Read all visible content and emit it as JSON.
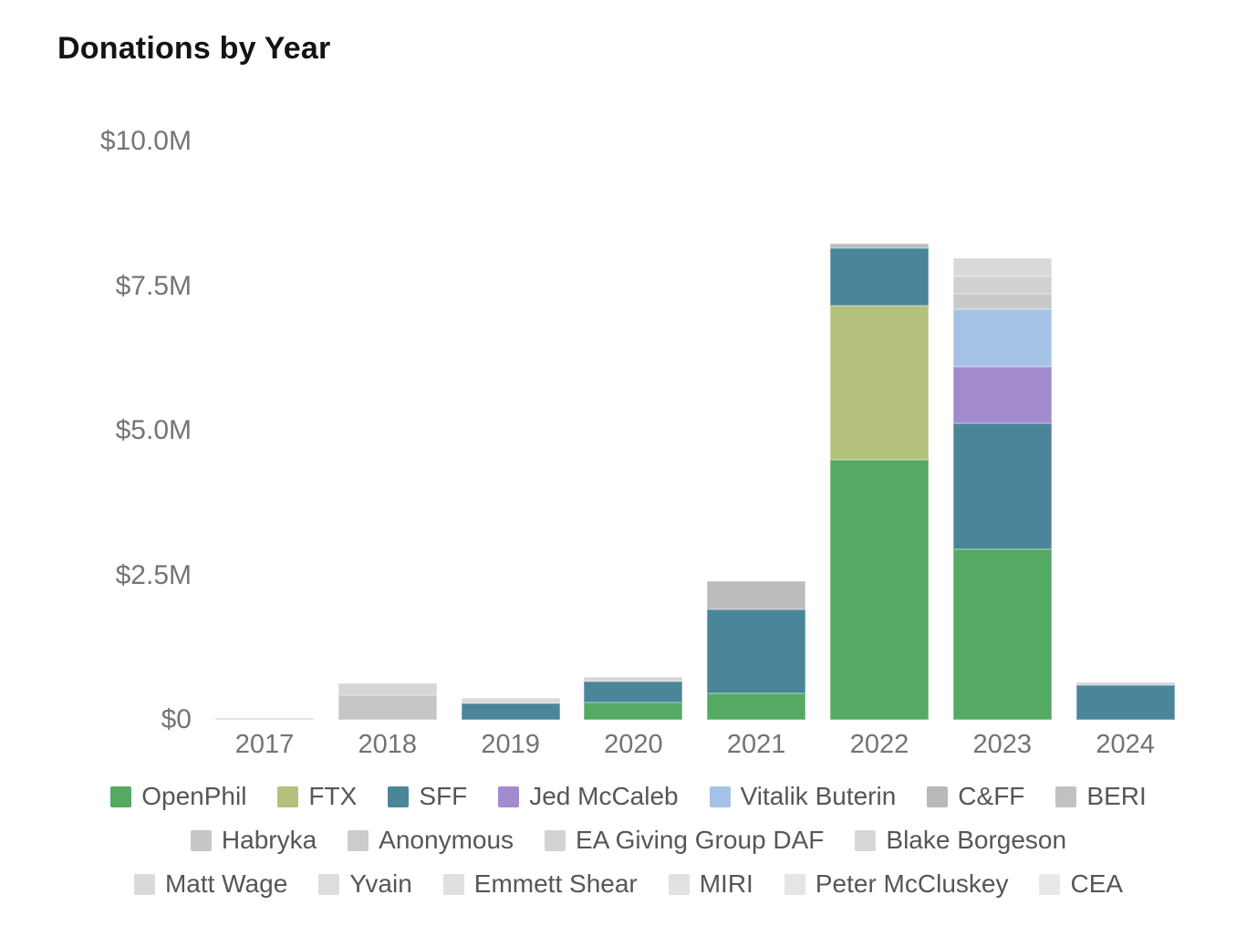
{
  "chart_data": {
    "type": "bar",
    "stacked": true,
    "title": "Donations by Year",
    "unit": "USD millions",
    "categories": [
      "2017",
      "2018",
      "2019",
      "2020",
      "2021",
      "2022",
      "2023",
      "2024"
    ],
    "ylim": [
      0,
      10
    ],
    "grid": false,
    "legend_position": "bottom",
    "y_ticks": [
      {
        "label": "$0",
        "value": 0
      },
      {
        "label": "$2.5M",
        "value": 2.5
      },
      {
        "label": "$5.0M",
        "value": 5
      },
      {
        "label": "$7.5M",
        "value": 7.5
      },
      {
        "label": "$10.0M",
        "value": 10
      }
    ],
    "legend": [
      {
        "name": "OpenPhil",
        "color": "#54a963"
      },
      {
        "name": "FTX",
        "color": "#b4c17c"
      },
      {
        "name": "SFF",
        "color": "#4a859a"
      },
      {
        "name": "Jed McCaleb",
        "color": "#a28bcd"
      },
      {
        "name": "Vitalik Buterin",
        "color": "#a5c2e6"
      },
      {
        "name": "C&FF",
        "color": "#b9b9b9"
      },
      {
        "name": "BERI",
        "color": "#c1c1c1"
      },
      {
        "name": "Habryka",
        "color": "#c7c7c7"
      },
      {
        "name": "Anonymous",
        "color": "#cccccc"
      },
      {
        "name": "EA Giving Group DAF",
        "color": "#d3d3d3"
      },
      {
        "name": "Blake Borgeson",
        "color": "#d7d7d7"
      },
      {
        "name": "Matt Wage",
        "color": "#dadada"
      },
      {
        "name": "Yvain",
        "color": "#dddddd"
      },
      {
        "name": "Emmett Shear",
        "color": "#e0e0e0"
      },
      {
        "name": "MIRI",
        "color": "#e2e2e2"
      },
      {
        "name": "Peter McCluskey",
        "color": "#e5e5e5"
      },
      {
        "name": "CEA",
        "color": "#e8e8e8"
      }
    ],
    "legend_rows": [
      [
        0,
        1,
        2,
        3,
        4,
        5,
        6
      ],
      [
        7,
        8,
        9,
        10
      ],
      [
        11,
        12,
        13,
        14,
        15,
        16
      ]
    ],
    "bars": [
      {
        "year": "2017",
        "total": 0.03,
        "segments": [
          {
            "name": "gray",
            "color": "#d9d9d9",
            "value": 0.03
          }
        ]
      },
      {
        "year": "2018",
        "total": 0.63,
        "segments": [
          {
            "name": "gray",
            "color": "#c6c6c6",
            "value": 0.42
          },
          {
            "name": "gray-light",
            "color": "#d6d6d6",
            "value": 0.21
          }
        ]
      },
      {
        "year": "2019",
        "total": 0.38,
        "segments": [
          {
            "name": "SFF",
            "color": "#4a859a",
            "value": 0.28
          },
          {
            "name": "gray-light",
            "color": "#d9d9d9",
            "value": 0.1
          }
        ]
      },
      {
        "year": "2020",
        "total": 0.74,
        "segments": [
          {
            "name": "OpenPhil",
            "color": "#54a963",
            "value": 0.3
          },
          {
            "name": "SFF",
            "color": "#4a859a",
            "value": 0.37
          },
          {
            "name": "gray-light",
            "color": "#d6d6d6",
            "value": 0.07
          }
        ]
      },
      {
        "year": "2021",
        "total": 2.4,
        "segments": [
          {
            "name": "OpenPhil",
            "color": "#54a963",
            "value": 0.46
          },
          {
            "name": "SFF",
            "color": "#4a859a",
            "value": 1.45
          },
          {
            "name": "gray",
            "color": "#bcbcbc",
            "value": 0.49
          }
        ]
      },
      {
        "year": "2022",
        "total": 8.24,
        "segments": [
          {
            "name": "OpenPhil",
            "color": "#54a963",
            "value": 4.5
          },
          {
            "name": "FTX",
            "color": "#b4c17c",
            "value": 2.66
          },
          {
            "name": "SFF",
            "color": "#4a859a",
            "value": 0.99
          },
          {
            "name": "gray",
            "color": "#b9bcbe",
            "value": 0.09
          }
        ]
      },
      {
        "year": "2023",
        "total": 7.99,
        "segments": [
          {
            "name": "OpenPhil",
            "color": "#54a963",
            "value": 2.95
          },
          {
            "name": "SFF",
            "color": "#4a859a",
            "value": 2.18
          },
          {
            "name": "Jed McCaleb",
            "color": "#a28bcd",
            "value": 0.98
          },
          {
            "name": "Vitalik Buterin",
            "color": "#a5c2e6",
            "value": 0.99
          },
          {
            "name": "gray",
            "color": "#c9c9c9",
            "value": 0.27
          },
          {
            "name": "gray-light",
            "color": "#d1d1d1",
            "value": 0.29
          },
          {
            "name": "gray-lighter",
            "color": "#d9d9d9",
            "value": 0.33
          }
        ]
      },
      {
        "year": "2024",
        "total": 0.65,
        "segments": [
          {
            "name": "SFF",
            "color": "#4a859a",
            "value": 0.6
          },
          {
            "name": "gray-light",
            "color": "#d0d0d0",
            "value": 0.05
          }
        ]
      }
    ]
  }
}
